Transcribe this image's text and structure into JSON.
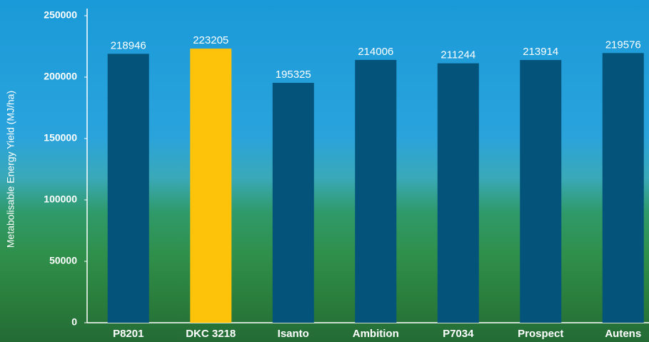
{
  "chart_data": {
    "type": "bar",
    "y_label": "Metabolisable Energy Yield (MJ/ha)",
    "categories": [
      "P8201",
      "DKC 3218",
      "Isanto",
      "Ambition",
      "P7034",
      "Prospect",
      "Autens"
    ],
    "values": [
      218946,
      223205,
      195325,
      214006,
      211244,
      213914,
      219576
    ],
    "colors": [
      "#04537a",
      "#fcc30a",
      "#04537a",
      "#04537a",
      "#04537a",
      "#04537a",
      "#04537a"
    ],
    "ylim": [
      0,
      250000
    ],
    "yticks": [
      0,
      50000,
      100000,
      150000,
      200000,
      250000
    ],
    "grid": false
  }
}
